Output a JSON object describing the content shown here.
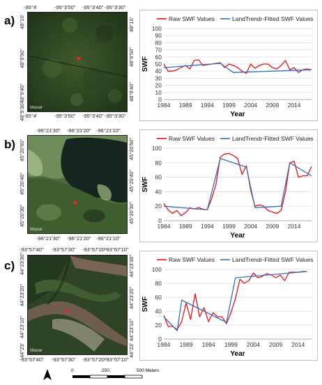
{
  "panels": [
    {
      "letter": "a)",
      "top_coords": [
        "-95°4'",
        "-95°3'50\"",
        "-95°3'40\"",
        "-95°3'30\""
      ],
      "bottom_coords": [
        "-95°4'",
        "-95°3'50\"",
        "-95°3'40\"",
        "-95°3'30\""
      ],
      "left_coords": [
        "48°10'",
        "48°9'50\"",
        "48°9'40\"",
        "48°9'30\""
      ],
      "right_coords": [
        "48°10'",
        "48°9'50\"",
        "48°9'40\""
      ],
      "watermark": "Maxar"
    },
    {
      "letter": "b)",
      "top_coords": [
        "-96°21'30\"",
        "-96°21'20\"",
        "-96°21'10\""
      ],
      "bottom_coords": [
        "-96°21'30\"",
        "-96°21'20\"",
        "-96°21'10\""
      ],
      "left_coords": [
        "45°20'50\"",
        "45°20'40\"",
        "45°20'30\""
      ],
      "right_coords": [
        "45°20'50\"",
        "45°20'40\"",
        "45°20'30\""
      ],
      "watermark": "Maxar"
    },
    {
      "letter": "c)",
      "top_coords": [
        "-93°57'40\"",
        "-93°57'30\"",
        "-93°57'20\"",
        "-93°57'10\""
      ],
      "bottom_coords": [
        "-93°57'40\"",
        "-93°57'30\"",
        "-93°57'20\"",
        "-93°57'10\""
      ],
      "left_coords": [
        "44°23'30\"",
        "44°23'20\"",
        "44°23'10\"",
        "44°23'"
      ],
      "right_coords": [
        "44°23'30\"",
        "44°23'20\"",
        "44°23'10\"",
        "44°23'"
      ],
      "watermark": "Maxar"
    }
  ],
  "scale_bar": {
    "labels": [
      "0",
      "250",
      "500 Meters"
    ]
  },
  "colors": {
    "raw": "#e8101a",
    "fitted": "#2f6fc0",
    "grid": "#d9d9d9"
  },
  "chart_data": [
    {
      "type": "line",
      "xlabel": "Year",
      "ylabel": "SWF",
      "ylim": [
        0,
        100
      ],
      "yticks": [
        0,
        10,
        20,
        30,
        40,
        50,
        60,
        70,
        80,
        90,
        100
      ],
      "xticks": [
        1984,
        1989,
        1994,
        1999,
        2004,
        2009,
        2014
      ],
      "xlim": [
        1984,
        2018
      ],
      "legend": "top",
      "series": [
        {
          "name": "Raw SWF Values",
          "x": [
            1984,
            1985,
            1986,
            1987,
            1988,
            1989,
            1990,
            1991,
            1992,
            1993,
            1994,
            1995,
            1996,
            1997,
            1998,
            1999,
            2000,
            2001,
            2002,
            2003,
            2004,
            2005,
            2006,
            2007,
            2008,
            2009,
            2010,
            2011,
            2012,
            2013,
            2014,
            2015,
            2016,
            2017,
            2018
          ],
          "values": [
            50,
            40,
            40,
            42,
            45,
            48,
            43,
            55,
            56,
            48,
            49,
            50,
            51,
            52,
            45,
            50,
            48,
            45,
            40,
            37,
            50,
            44,
            48,
            50,
            50,
            45,
            43,
            48,
            55,
            42,
            45,
            38,
            42,
            43,
            42
          ]
        },
        {
          "name": "LandTrendr-Fitted SWF Values",
          "x": [
            1984,
            1997,
            2000,
            2018
          ],
          "values": [
            45,
            51,
            38,
            42
          ]
        }
      ]
    },
    {
      "type": "line",
      "xlabel": "Year",
      "ylabel": "SWF",
      "ylim": [
        0,
        100
      ],
      "yticks": [
        0,
        20,
        40,
        60,
        80,
        100
      ],
      "xticks": [
        1984,
        1989,
        1994,
        1999,
        2004,
        2009,
        2014
      ],
      "xlim": [
        1984,
        2018
      ],
      "legend": "top",
      "series": [
        {
          "name": "Raw SWF Values",
          "x": [
            1984,
            1985,
            1986,
            1987,
            1988,
            1989,
            1990,
            1991,
            1992,
            1993,
            1994,
            1995,
            1996,
            1997,
            1998,
            1999,
            2000,
            2001,
            2002,
            2003,
            2004,
            2005,
            2006,
            2007,
            2008,
            2009,
            2010,
            2011,
            2012,
            2013,
            2014,
            2015,
            2016,
            2017,
            2018
          ],
          "values": [
            24,
            15,
            10,
            14,
            7,
            11,
            18,
            16,
            18,
            16,
            15,
            30,
            50,
            88,
            92,
            93,
            90,
            86,
            64,
            76,
            42,
            20,
            22,
            20,
            14,
            12,
            10,
            14,
            40,
            80,
            82,
            60,
            62,
            62,
            75
          ]
        },
        {
          "name": "LandTrendr-Fitted SWF Values",
          "x": [
            1984,
            1994,
            1997,
            2003,
            2005,
            2011,
            2013,
            2018
          ],
          "values": [
            20,
            15,
            86,
            74,
            18,
            20,
            80,
            62
          ]
        }
      ]
    },
    {
      "type": "line",
      "xlabel": "Year",
      "ylabel": "SWF",
      "ylim": [
        0,
        100
      ],
      "yticks": [
        0,
        20,
        40,
        60,
        80,
        100
      ],
      "xticks": [
        1984,
        1989,
        1994,
        1999,
        2004,
        2009,
        2014
      ],
      "xlim": [
        1984,
        2017
      ],
      "legend": "top",
      "series": [
        {
          "name": "Raw SWF Values",
          "x": [
            1984,
            1985,
            1986,
            1987,
            1988,
            1989,
            1990,
            1991,
            1992,
            1993,
            1994,
            1995,
            1996,
            1997,
            1998,
            1999,
            2000,
            2001,
            2002,
            2003,
            2004,
            2005,
            2006,
            2007,
            2008,
            2009,
            2010,
            2011,
            2012,
            2013,
            2014,
            2015,
            2016
          ],
          "values": [
            34,
            18,
            18,
            14,
            25,
            52,
            28,
            65,
            32,
            45,
            25,
            38,
            32,
            32,
            22,
            38,
            58,
            86,
            80,
            84,
            95,
            88,
            90,
            94,
            92,
            88,
            92,
            84,
            96,
            96,
            96,
            97,
            97
          ]
        },
        {
          "name": "LandTrendr-Fitted SWF Values",
          "x": [
            1984,
            1987,
            1988,
            1998,
            2000,
            2016
          ],
          "values": [
            32,
            12,
            56,
            24,
            88,
            97
          ]
        }
      ]
    }
  ]
}
